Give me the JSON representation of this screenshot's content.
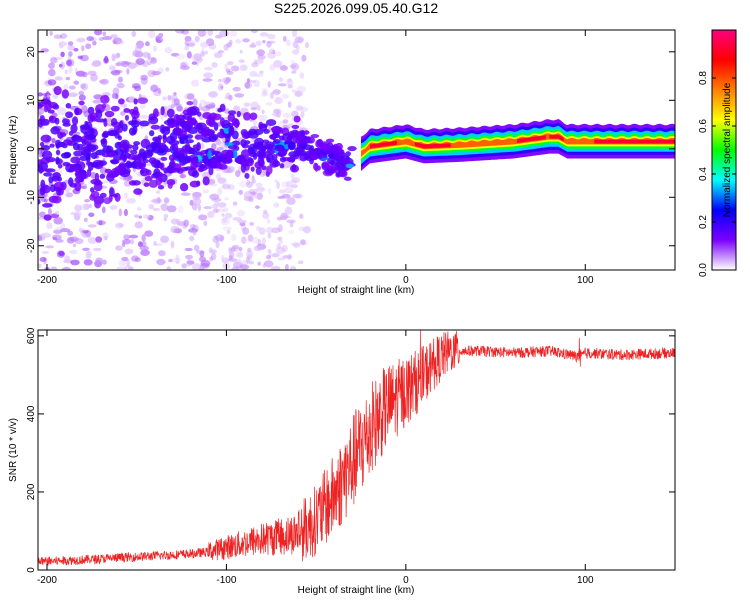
{
  "title": "S225.2026.099.05.40.G12",
  "chart_data": [
    {
      "type": "heatmap",
      "xlabel": "Height of straight line (km)",
      "ylabel": "Frequency (Hz)",
      "xlim": [
        -205,
        150
      ],
      "ylim": [
        -25,
        24.5
      ],
      "xticks": [
        -200,
        -100,
        0,
        100
      ],
      "xtick_labels": [
        "-200",
        "-100",
        "0",
        "100"
      ],
      "yticks": [
        -20,
        -10,
        0,
        10,
        20
      ],
      "ytick_labels": [
        "-20",
        "-10",
        "0",
        "10",
        "20"
      ],
      "ridge": {
        "x": [
          -205,
          -150,
          -120,
          -100,
          -80,
          -60,
          -45,
          -35,
          -28,
          -20,
          -10,
          0,
          10,
          30,
          60,
          80,
          85,
          90,
          100,
          150
        ],
        "y": [
          -1,
          0,
          1,
          1.5,
          0.5,
          1,
          -1,
          -3,
          -2,
          0.5,
          1,
          1.5,
          0.5,
          0.8,
          1.5,
          2.5,
          2.5,
          1.5,
          1.5,
          1.5
        ]
      },
      "colorbar": {
        "label": "Normalized spectral amplitude",
        "range": [
          0,
          1
        ],
        "ticks": [
          0.0,
          0.2,
          0.4,
          0.6,
          0.8
        ],
        "tick_labels": [
          "0.0",
          "0.2",
          "0.4",
          "0.6",
          "0.8"
        ],
        "colormap": [
          "#ffffff",
          "#7b00ff",
          "#0000ff",
          "#00ffff",
          "#00ff00",
          "#ffff00",
          "#ff7f00",
          "#ff0000",
          "#ff0080"
        ]
      }
    },
    {
      "type": "line",
      "xlabel": "Height of straight line (km)",
      "ylabel": "SNR (10 * v/v)",
      "xlim": [
        -205,
        150
      ],
      "ylim": [
        0,
        615
      ],
      "xticks": [
        -200,
        -100,
        0,
        100
      ],
      "xtick_labels": [
        "-200",
        "-100",
        "0",
        "100"
      ],
      "yticks": [
        0,
        200,
        400,
        600
      ],
      "ytick_labels": [
        "0",
        "200",
        "400",
        "600"
      ],
      "color": "#ee2222",
      "series": [
        {
          "name": "SNR",
          "x": [
            -205,
            -180,
            -160,
            -140,
            -120,
            -110,
            -100,
            -90,
            -80,
            -70,
            -60,
            -55,
            -50,
            -45,
            -40,
            -35,
            -30,
            -25,
            -20,
            -15,
            -10,
            -5,
            0,
            5,
            10,
            15,
            20,
            25,
            30,
            40,
            60,
            80,
            97,
            100,
            120,
            150
          ],
          "y": [
            20,
            25,
            30,
            35,
            40,
            45,
            55,
            65,
            75,
            80,
            90,
            100,
            120,
            150,
            180,
            220,
            260,
            300,
            340,
            380,
            410,
            430,
            450,
            470,
            490,
            520,
            540,
            555,
            560,
            560,
            555,
            560,
            545,
            555,
            550,
            555
          ]
        }
      ]
    }
  ]
}
